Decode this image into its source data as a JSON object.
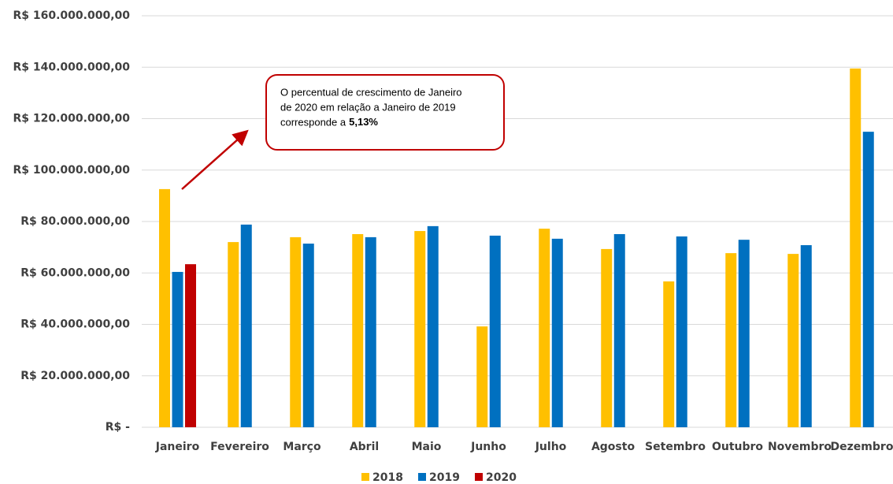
{
  "chart_data": {
    "type": "bar",
    "categories": [
      "Janeiro",
      "Fevereiro",
      "Março",
      "Abril",
      "Maio",
      "Junho",
      "Julho",
      "Agosto",
      "Setembro",
      "Outubro",
      "Novembro",
      "Dezembro"
    ],
    "series": [
      {
        "name": "2018",
        "color": "#ffc000",
        "values": [
          92600000,
          72000000,
          73900000,
          75100000,
          76300000,
          39200000,
          77200000,
          69300000,
          56700000,
          67700000,
          67400000,
          139500000
        ]
      },
      {
        "name": "2019",
        "color": "#0070c0",
        "values": [
          60400000,
          78800000,
          71400000,
          73900000,
          78200000,
          74500000,
          73300000,
          75100000,
          74200000,
          72900000,
          70800000,
          114900000
        ]
      },
      {
        "name": "2020",
        "color": "#c00000",
        "values": [
          63400000,
          null,
          null,
          null,
          null,
          null,
          null,
          null,
          null,
          null,
          null,
          null
        ]
      }
    ],
    "ylim": [
      0,
      160000000
    ],
    "yticks": [
      {
        "value": 0,
        "label": "R$ -"
      },
      {
        "value": 20000000,
        "label": "R$ 20.000.000,00"
      },
      {
        "value": 40000000,
        "label": "R$ 40.000.000,00"
      },
      {
        "value": 60000000,
        "label": "R$ 60.000.000,00"
      },
      {
        "value": 80000000,
        "label": "R$ 80.000.000,00"
      },
      {
        "value": 100000000,
        "label": "R$ 100.000.000,00"
      },
      {
        "value": 120000000,
        "label": "R$ 120.000.000,00"
      },
      {
        "value": 140000000,
        "label": "R$ 140.000.000,00"
      },
      {
        "value": 160000000,
        "label": "R$ 160.000.000,00"
      }
    ],
    "grid": true,
    "legend": "bottom",
    "annotation": {
      "lines": [
        "O percentual de crescimento de Janeiro",
        "de 2020 em relação a Janeiro de 2019",
        "corresponde a"
      ],
      "highlight": "5,13%"
    }
  }
}
